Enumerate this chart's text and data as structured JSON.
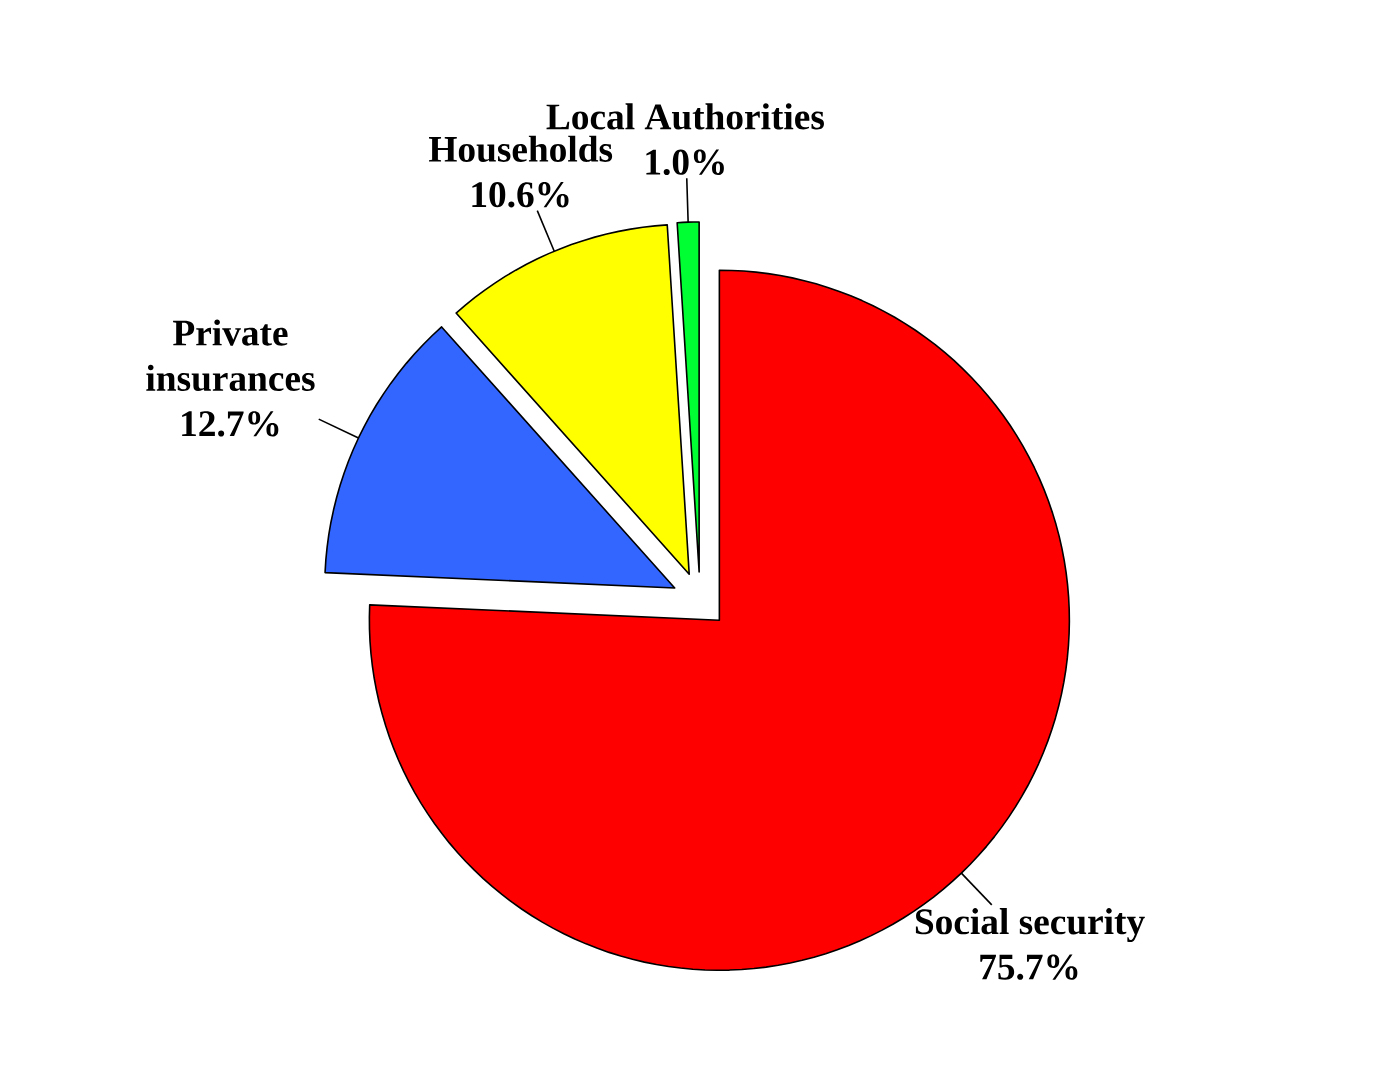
{
  "chart_data": {
    "type": "pie",
    "categories": [
      "Social security",
      "Private insurances",
      "Households",
      "Local Authorities"
    ],
    "values": [
      75.7,
      12.7,
      10.6,
      1.0
    ],
    "colors": [
      "#ff0000",
      "#3366ff",
      "#ffff00",
      "#00ff33"
    ],
    "value_labels": [
      "75.7%",
      "12.7%",
      "10.6%",
      "1.0%"
    ]
  }
}
